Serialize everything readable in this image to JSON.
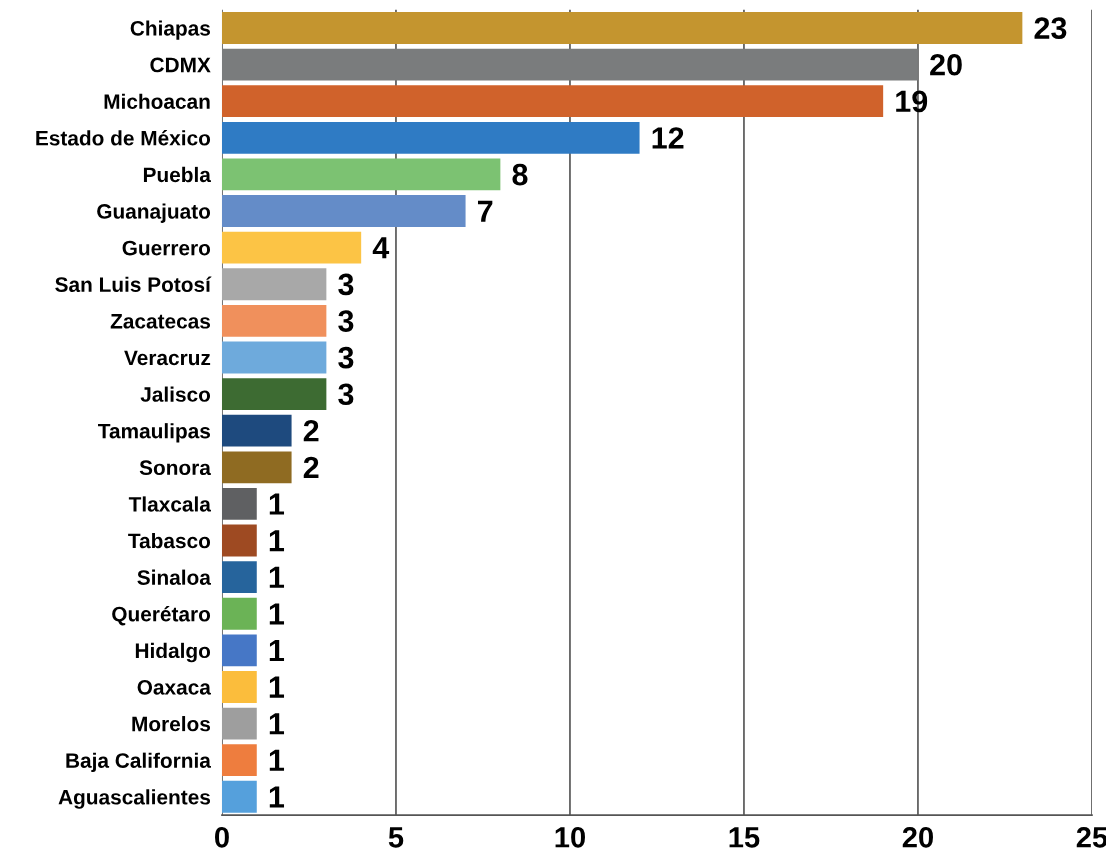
{
  "chart_data": {
    "type": "bar",
    "orientation": "horizontal",
    "categories": [
      "Chiapas",
      "CDMX",
      "Michoacan",
      "Estado de México",
      "Puebla",
      "Guanajuato",
      "Guerrero",
      "San Luis Potosí",
      "Zacatecas",
      "Veracruz",
      "Jalisco",
      "Tamaulipas",
      "Sonora",
      "Tlaxcala",
      "Tabasco",
      "Sinaloa",
      "Querétaro",
      "Hidalgo",
      "Oaxaca",
      "Morelos",
      "Baja California",
      "Aguascalientes"
    ],
    "values": [
      23,
      20,
      19,
      12,
      8,
      7,
      4,
      3,
      3,
      3,
      3,
      2,
      2,
      1,
      1,
      1,
      1,
      1,
      1,
      1,
      1,
      1
    ],
    "colors": [
      "#c4952f",
      "#7a7c7d",
      "#d0622b",
      "#2f7bc4",
      "#7cc272",
      "#648cc8",
      "#fcc445",
      "#a8a8a8",
      "#f0905c",
      "#6eaadc",
      "#3d6b32",
      "#1e4a7e",
      "#8f6b22",
      "#5f6062",
      "#9e4a22",
      "#26649c",
      "#6bb356",
      "#4677c6",
      "#fbbd3c",
      "#9e9e9e",
      "#ee7d3e",
      "#55a0dc"
    ],
    "xlim": [
      0,
      25
    ],
    "xticks": [
      0,
      5,
      10,
      15,
      20,
      25
    ],
    "grid": "x",
    "legend": false,
    "data_labels": true
  }
}
